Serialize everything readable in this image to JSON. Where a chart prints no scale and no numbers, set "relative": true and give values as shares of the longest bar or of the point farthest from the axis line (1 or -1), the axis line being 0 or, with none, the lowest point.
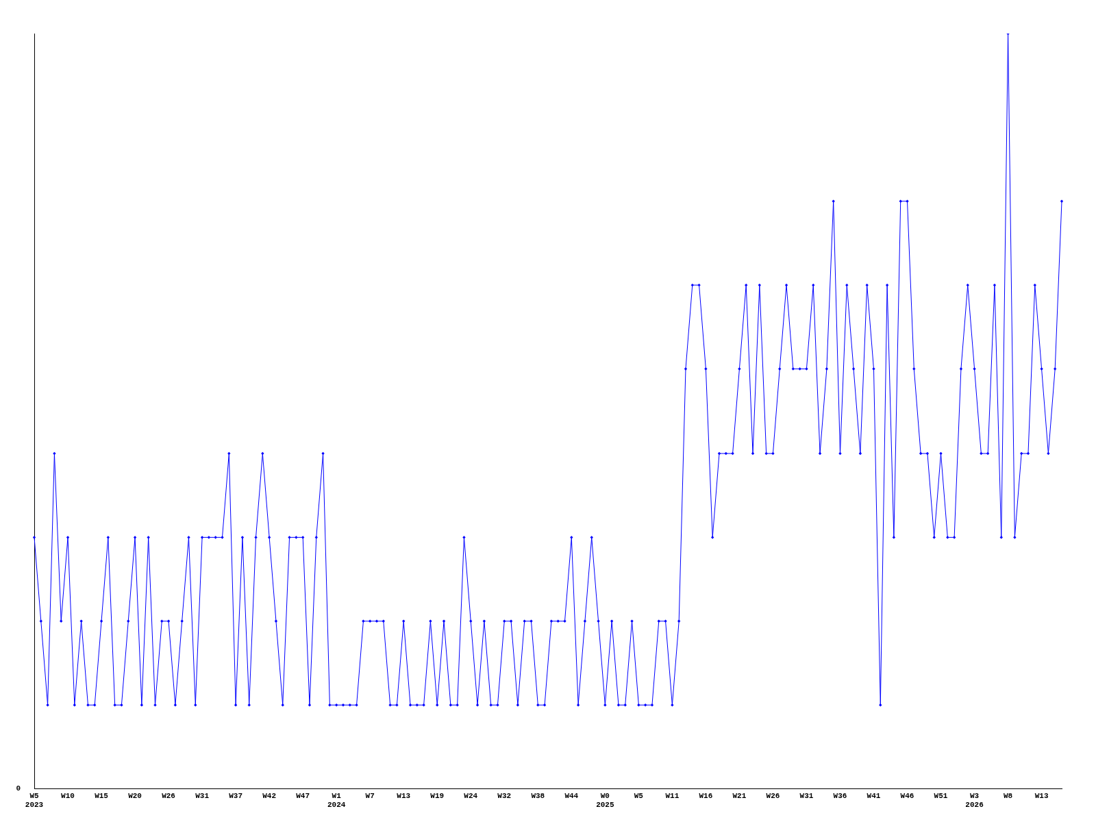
{
  "chart_data": {
    "type": "line",
    "relative": true,
    "categories": [
      "W5\n2023",
      null,
      null,
      null,
      null,
      "W10",
      null,
      null,
      null,
      null,
      "W15",
      null,
      null,
      null,
      null,
      "W20",
      null,
      null,
      null,
      null,
      "W26",
      null,
      null,
      null,
      null,
      "W31",
      null,
      null,
      null,
      null,
      "W37",
      null,
      null,
      null,
      null,
      "W42",
      null,
      null,
      null,
      null,
      "W47",
      null,
      null,
      null,
      null,
      "W1\n2024",
      null,
      null,
      null,
      null,
      "W7",
      null,
      null,
      null,
      null,
      "W13",
      null,
      null,
      null,
      null,
      "W19",
      null,
      null,
      null,
      null,
      "W24",
      null,
      null,
      null,
      null,
      "W32",
      null,
      null,
      null,
      null,
      "W38",
      null,
      null,
      null,
      null,
      "W44",
      null,
      null,
      null,
      null,
      "W0\n2025",
      null,
      null,
      null,
      null,
      "W5",
      null,
      null,
      null,
      null,
      "W11",
      null,
      null,
      null,
      null,
      "W16",
      null,
      null,
      null,
      null,
      "W21",
      null,
      null,
      null,
      null,
      "W26",
      null,
      null,
      null,
      null,
      "W31",
      null,
      null,
      null,
      null,
      "W36",
      null,
      null,
      null,
      null,
      "W41",
      null,
      null,
      null,
      null,
      "W46",
      null,
      null,
      null,
      null,
      "W51",
      null,
      null,
      null,
      null,
      "W3\n2026",
      null,
      null,
      null,
      null,
      "W8",
      null,
      null,
      null,
      null,
      "W13",
      null,
      null,
      null
    ],
    "series": [
      {
        "color": "#0000ff",
        "values": [
          0.333,
          0.222,
          0.111,
          0.444,
          0.222,
          0.333,
          0.111,
          0.222,
          0.111,
          0.111,
          0.222,
          0.333,
          0.111,
          0.111,
          0.222,
          0.333,
          0.111,
          0.333,
          0.111,
          0.222,
          0.222,
          0.111,
          0.222,
          0.333,
          0.111,
          0.333,
          0.333,
          0.333,
          0.333,
          0.444,
          0.111,
          0.333,
          0.111,
          0.333,
          0.444,
          0.333,
          0.222,
          0.111,
          0.333,
          0.333,
          0.333,
          0.111,
          0.333,
          0.444,
          0.111,
          0.111,
          0.111,
          0.111,
          0.111,
          0.222,
          0.222,
          0.222,
          0.222,
          0.111,
          0.111,
          0.222,
          0.111,
          0.111,
          0.111,
          0.222,
          0.111,
          0.222,
          0.111,
          0.111,
          0.333,
          0.222,
          0.111,
          0.222,
          0.111,
          0.111,
          0.222,
          0.222,
          0.111,
          0.222,
          0.222,
          0.111,
          0.111,
          0.222,
          0.222,
          0.222,
          0.333,
          0.111,
          0.222,
          0.333,
          0.222,
          0.111,
          0.222,
          0.111,
          0.111,
          0.222,
          0.111,
          0.111,
          0.111,
          0.222,
          0.222,
          0.111,
          0.222,
          0.556,
          0.667,
          0.667,
          0.556,
          0.333,
          0.444,
          0.444,
          0.444,
          0.556,
          0.667,
          0.444,
          0.667,
          0.444,
          0.444,
          0.556,
          0.667,
          0.556,
          0.556,
          0.556,
          0.667,
          0.444,
          0.556,
          0.778,
          0.444,
          0.667,
          0.556,
          0.444,
          0.667,
          0.556,
          0.111,
          0.667,
          0.333,
          0.778,
          0.778,
          0.556,
          0.444,
          0.444,
          0.333,
          0.444,
          0.333,
          0.333,
          0.556,
          0.667,
          0.556,
          0.444,
          0.444,
          0.667,
          0.333,
          1,
          0.333,
          0.444,
          0.444,
          0.667,
          0.556,
          0.444,
          0.556,
          0.778
        ]
      }
    ],
    "annotations": [
      "0"
    ],
    "grid": false,
    "legend": false,
    "marker": "diamond",
    "line_style": "solid"
  }
}
